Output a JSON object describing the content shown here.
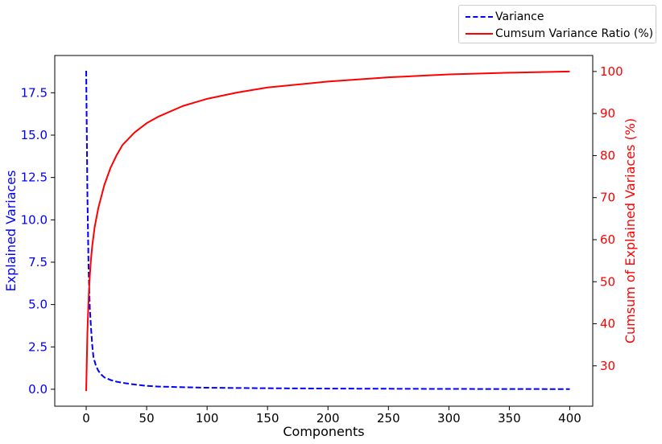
{
  "chart_data": {
    "type": "line",
    "title": "",
    "xlabel": "Components",
    "ylabel_left": "Explained Variaces",
    "ylabel_right": "Cumsum of Explained Variaces (%)",
    "xlim": [
      -26,
      419
    ],
    "ylim_left": [
      -1.0,
      19.7
    ],
    "ylim_right": [
      20.4,
      103.8
    ],
    "x_ticks": [
      0,
      50,
      100,
      150,
      200,
      250,
      300,
      350,
      400
    ],
    "y_ticks_left": [
      0.0,
      2.5,
      5.0,
      7.5,
      10.0,
      12.5,
      15.0,
      17.5
    ],
    "y_ticks_left_labels": [
      "0.0",
      "2.5",
      "5.0",
      "7.5",
      "10.0",
      "12.5",
      "15.0",
      "17.5"
    ],
    "y_ticks_right": [
      30,
      40,
      50,
      60,
      70,
      80,
      90,
      100
    ],
    "legend_position": "top-right",
    "grid": false,
    "series": [
      {
        "name": "Variance",
        "axis": "left",
        "style": "dashed",
        "color": "#0000ff",
        "x": [
          0,
          1,
          2,
          3,
          4,
          5,
          6,
          8,
          10,
          12,
          15,
          20,
          25,
          30,
          40,
          50,
          60,
          80,
          100,
          150,
          200,
          250,
          300,
          350,
          400
        ],
        "y": [
          18.8,
          11.5,
          7.0,
          4.8,
          3.6,
          2.6,
          1.9,
          1.4,
          1.1,
          0.9,
          0.7,
          0.55,
          0.45,
          0.38,
          0.28,
          0.2,
          0.16,
          0.12,
          0.09,
          0.06,
          0.04,
          0.03,
          0.02,
          0.015,
          0.01
        ]
      },
      {
        "name": "Cumsum Variance Ratio (%)",
        "axis": "right",
        "style": "solid",
        "color": "#ff0000",
        "x": [
          0,
          1,
          2,
          3,
          4,
          5,
          7,
          10,
          15,
          20,
          25,
          30,
          40,
          50,
          60,
          80,
          100,
          125,
          150,
          200,
          250,
          300,
          350,
          400
        ],
        "y": [
          24.0,
          38.0,
          46.0,
          51.5,
          55.5,
          58.5,
          63.0,
          67.5,
          73.0,
          77.0,
          80.0,
          82.5,
          85.5,
          87.7,
          89.3,
          91.8,
          93.5,
          95.0,
          96.2,
          97.6,
          98.6,
          99.3,
          99.7,
          100.0
        ]
      }
    ]
  }
}
